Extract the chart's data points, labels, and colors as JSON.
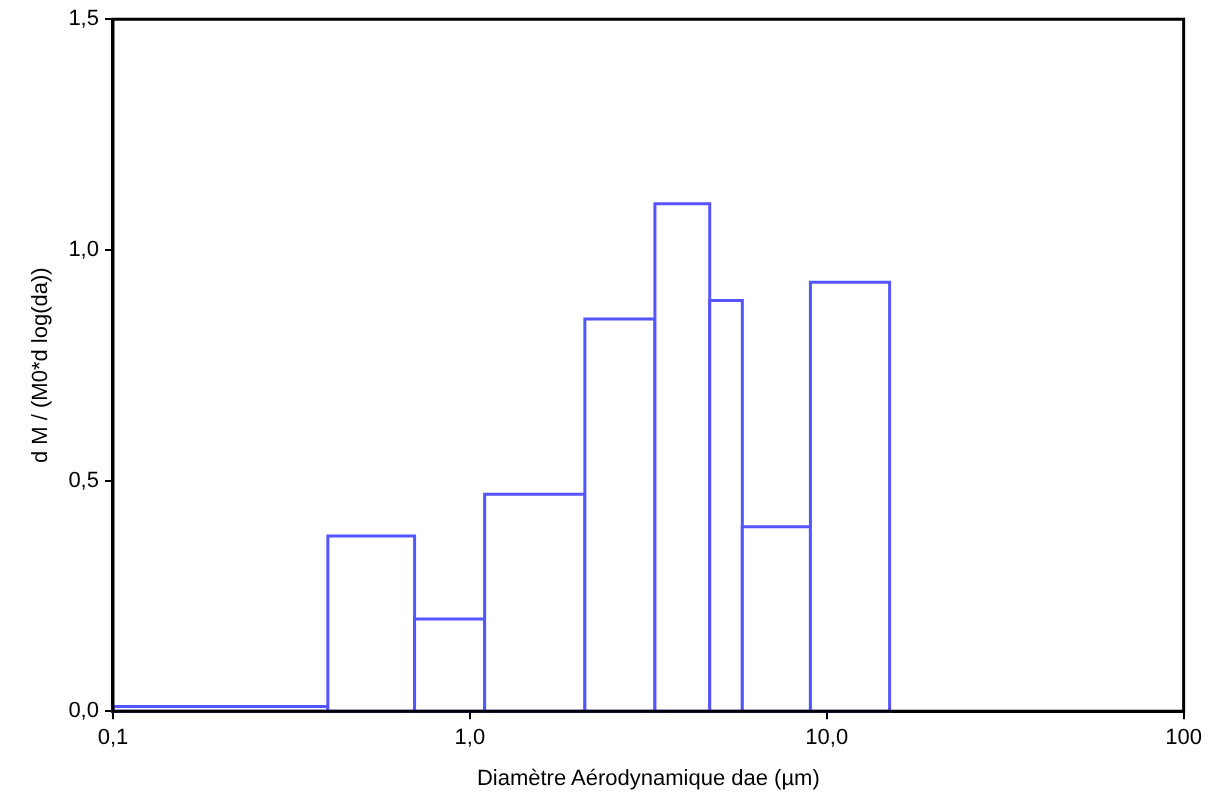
{
  "chart_data": {
    "type": "histogram",
    "xlabel": "Diamètre Aérodynamique dae (µm)",
    "ylabel": "d M / (M0*d log(da))",
    "bins": [
      0.1,
      0.4,
      0.7,
      1.1,
      2.1,
      3.3,
      4.7,
      5.8,
      9.0,
      15
    ],
    "values": [
      0.01,
      0.38,
      0.2,
      0.47,
      0.85,
      1.1,
      0.89,
      0.4,
      0.93
    ],
    "color": "#5555ff",
    "log": "x",
    "xlim": [
      0.1,
      100
    ],
    "xticks": [
      {
        "value": 0.1,
        "label": "0,1"
      },
      {
        "value": 1,
        "label": "1,0"
      },
      {
        "value": 10,
        "label": "10,0"
      },
      100
    ],
    "ylim": [
      0,
      1.5
    ],
    "yticks": [
      {
        "value": 0,
        "label": "0,0"
      },
      {
        "value": 0.5,
        "label": "0,5"
      },
      {
        "value": 1,
        "label": "1,0"
      },
      {
        "value": 1.5,
        "label": "1,5"
      }
    ],
    "grid": false
  }
}
